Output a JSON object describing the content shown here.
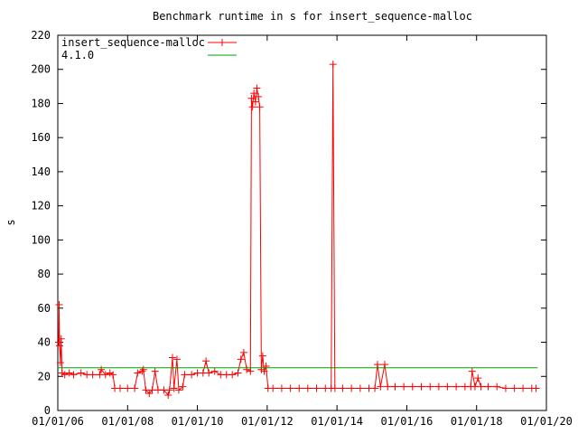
{
  "chart_data": {
    "type": "line",
    "title": "Benchmark runtime in s for insert_sequence-malloc",
    "xlabel": "",
    "ylabel": "s",
    "xlim": [
      "2006-01-01",
      "2020-01-01"
    ],
    "ylim": [
      0,
      220
    ],
    "x_ticks": [
      "01/01/06",
      "01/01/08",
      "01/01/10",
      "01/01/12",
      "01/01/14",
      "01/01/16",
      "01/01/18",
      "01/01/20"
    ],
    "y_ticks": [
      0,
      20,
      40,
      60,
      80,
      100,
      120,
      140,
      160,
      180,
      200,
      220
    ],
    "legend_position": "top-left",
    "grid": false,
    "series": [
      {
        "name": "insert_sequence-malloc",
        "color": "#ff0000",
        "marker": "plus",
        "points": [
          [
            "2006-01-10",
            40
          ],
          [
            "2006-01-15",
            62
          ],
          [
            "2006-01-20",
            38
          ],
          [
            "2006-01-28",
            28
          ],
          [
            "2006-02-05",
            42
          ],
          [
            "2006-02-15",
            22
          ],
          [
            "2006-03-15",
            21
          ],
          [
            "2006-05-01",
            22
          ],
          [
            "2006-06-15",
            21
          ],
          [
            "2006-09-01",
            22
          ],
          [
            "2006-11-01",
            21
          ],
          [
            "2007-01-01",
            21
          ],
          [
            "2007-03-15",
            21
          ],
          [
            "2007-04-01",
            24
          ],
          [
            "2007-05-15",
            21
          ],
          [
            "2007-07-01",
            22
          ],
          [
            "2007-08-01",
            21
          ],
          [
            "2007-08-20",
            13
          ],
          [
            "2007-10-15",
            13
          ],
          [
            "2008-01-01",
            13
          ],
          [
            "2008-03-15",
            13
          ],
          [
            "2008-04-15",
            22
          ],
          [
            "2008-06-01",
            23
          ],
          [
            "2008-06-15",
            24
          ],
          [
            "2008-07-10",
            12
          ],
          [
            "2008-08-15",
            10
          ],
          [
            "2008-09-15",
            12
          ],
          [
            "2008-10-15",
            23
          ],
          [
            "2008-11-15",
            12
          ],
          [
            "2009-01-15",
            12
          ],
          [
            "2009-03-01",
            9
          ],
          [
            "2009-03-15",
            12
          ],
          [
            "2009-04-15",
            31
          ],
          [
            "2009-05-01",
            13
          ],
          [
            "2009-06-01",
            30
          ],
          [
            "2009-06-20",
            12
          ],
          [
            "2009-08-01",
            14
          ],
          [
            "2009-08-20",
            21
          ],
          [
            "2009-11-01",
            21
          ],
          [
            "2010-01-01",
            22
          ],
          [
            "2010-03-01",
            22
          ],
          [
            "2010-04-01",
            29
          ],
          [
            "2010-05-01",
            22
          ],
          [
            "2010-07-01",
            23
          ],
          [
            "2010-09-01",
            21
          ],
          [
            "2010-11-01",
            21
          ],
          [
            "2011-01-01",
            21
          ],
          [
            "2011-03-01",
            22
          ],
          [
            "2011-04-01",
            30
          ],
          [
            "2011-05-01",
            34
          ],
          [
            "2011-06-01",
            24
          ],
          [
            "2011-07-10",
            23
          ],
          [
            "2011-07-20",
            183
          ],
          [
            "2011-08-01",
            178
          ],
          [
            "2011-08-15",
            186
          ],
          [
            "2011-09-01",
            181
          ],
          [
            "2011-09-15",
            189
          ],
          [
            "2011-10-01",
            184
          ],
          [
            "2011-10-15",
            178
          ],
          [
            "2011-11-01",
            24
          ],
          [
            "2011-11-15",
            32
          ],
          [
            "2011-12-01",
            23
          ],
          [
            "2011-12-20",
            26
          ],
          [
            "2012-01-10",
            13
          ],
          [
            "2012-03-01",
            13
          ],
          [
            "2012-06-01",
            13
          ],
          [
            "2012-09-01",
            13
          ],
          [
            "2012-12-01",
            13
          ],
          [
            "2013-03-01",
            13
          ],
          [
            "2013-06-01",
            13
          ],
          [
            "2013-09-01",
            13
          ],
          [
            "2013-11-01",
            13
          ],
          [
            "2013-11-20",
            203
          ],
          [
            "2013-12-10",
            13
          ],
          [
            "2014-03-01",
            13
          ],
          [
            "2014-06-01",
            13
          ],
          [
            "2014-09-01",
            13
          ],
          [
            "2014-12-01",
            13
          ],
          [
            "2015-02-01",
            13
          ],
          [
            "2015-03-01",
            27
          ],
          [
            "2015-04-01",
            14
          ],
          [
            "2015-05-15",
            27
          ],
          [
            "2015-06-15",
            14
          ],
          [
            "2015-09-01",
            14
          ],
          [
            "2015-12-01",
            14
          ],
          [
            "2016-03-01",
            14
          ],
          [
            "2016-06-01",
            14
          ],
          [
            "2016-09-01",
            14
          ],
          [
            "2016-12-01",
            14
          ],
          [
            "2017-03-01",
            14
          ],
          [
            "2017-06-01",
            14
          ],
          [
            "2017-09-01",
            14
          ],
          [
            "2017-11-01",
            14
          ],
          [
            "2017-11-15",
            23
          ],
          [
            "2017-12-15",
            14
          ],
          [
            "2018-01-15",
            19
          ],
          [
            "2018-02-15",
            14
          ],
          [
            "2018-05-01",
            14
          ],
          [
            "2018-08-01",
            14
          ],
          [
            "2018-11-01",
            13
          ],
          [
            "2019-02-01",
            13
          ],
          [
            "2019-05-01",
            13
          ],
          [
            "2019-08-01",
            13
          ],
          [
            "2019-09-15",
            13
          ]
        ]
      },
      {
        "name": "4.1.0",
        "color": "#00a000",
        "marker": "none",
        "points": [
          [
            "2006-01-01",
            25
          ],
          [
            "2019-10-01",
            25
          ]
        ]
      }
    ]
  }
}
